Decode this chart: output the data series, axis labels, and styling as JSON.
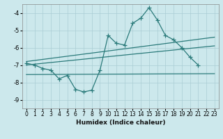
{
  "xlabel": "Humidex (Indice chaleur)",
  "background_color": "#cce8ec",
  "grid_color": "#aacdd4",
  "line_color": "#2a7a7a",
  "main_x": [
    0,
    1,
    2,
    3,
    4,
    5,
    6,
    7,
    8,
    9,
    10,
    11,
    12,
    13,
    14,
    15,
    16,
    17,
    18,
    19,
    20,
    21
  ],
  "main_y": [
    -6.9,
    -7.0,
    -7.2,
    -7.3,
    -7.8,
    -7.6,
    -8.4,
    -8.55,
    -8.45,
    -7.3,
    -5.3,
    -5.75,
    -5.85,
    -4.6,
    -4.3,
    -3.7,
    -4.4,
    -5.3,
    -5.55,
    -6.0,
    -6.55,
    -7.0
  ],
  "trend1_x": [
    0,
    23
  ],
  "trend1_y": [
    -6.8,
    -5.4
  ],
  "trend2_x": [
    0,
    23
  ],
  "trend2_y": [
    -7.0,
    -5.9
  ],
  "trend3_x": [
    0,
    23
  ],
  "trend3_y": [
    -7.55,
    -7.5
  ],
  "ylim": [
    -9.5,
    -3.5
  ],
  "yticks": [
    -9,
    -8,
    -7,
    -6,
    -5,
    -4
  ],
  "xticks": [
    0,
    1,
    2,
    3,
    4,
    5,
    6,
    7,
    8,
    9,
    10,
    11,
    12,
    13,
    14,
    15,
    16,
    17,
    18,
    19,
    20,
    21,
    22,
    23
  ],
  "xlim": [
    -0.5,
    23.5
  ]
}
